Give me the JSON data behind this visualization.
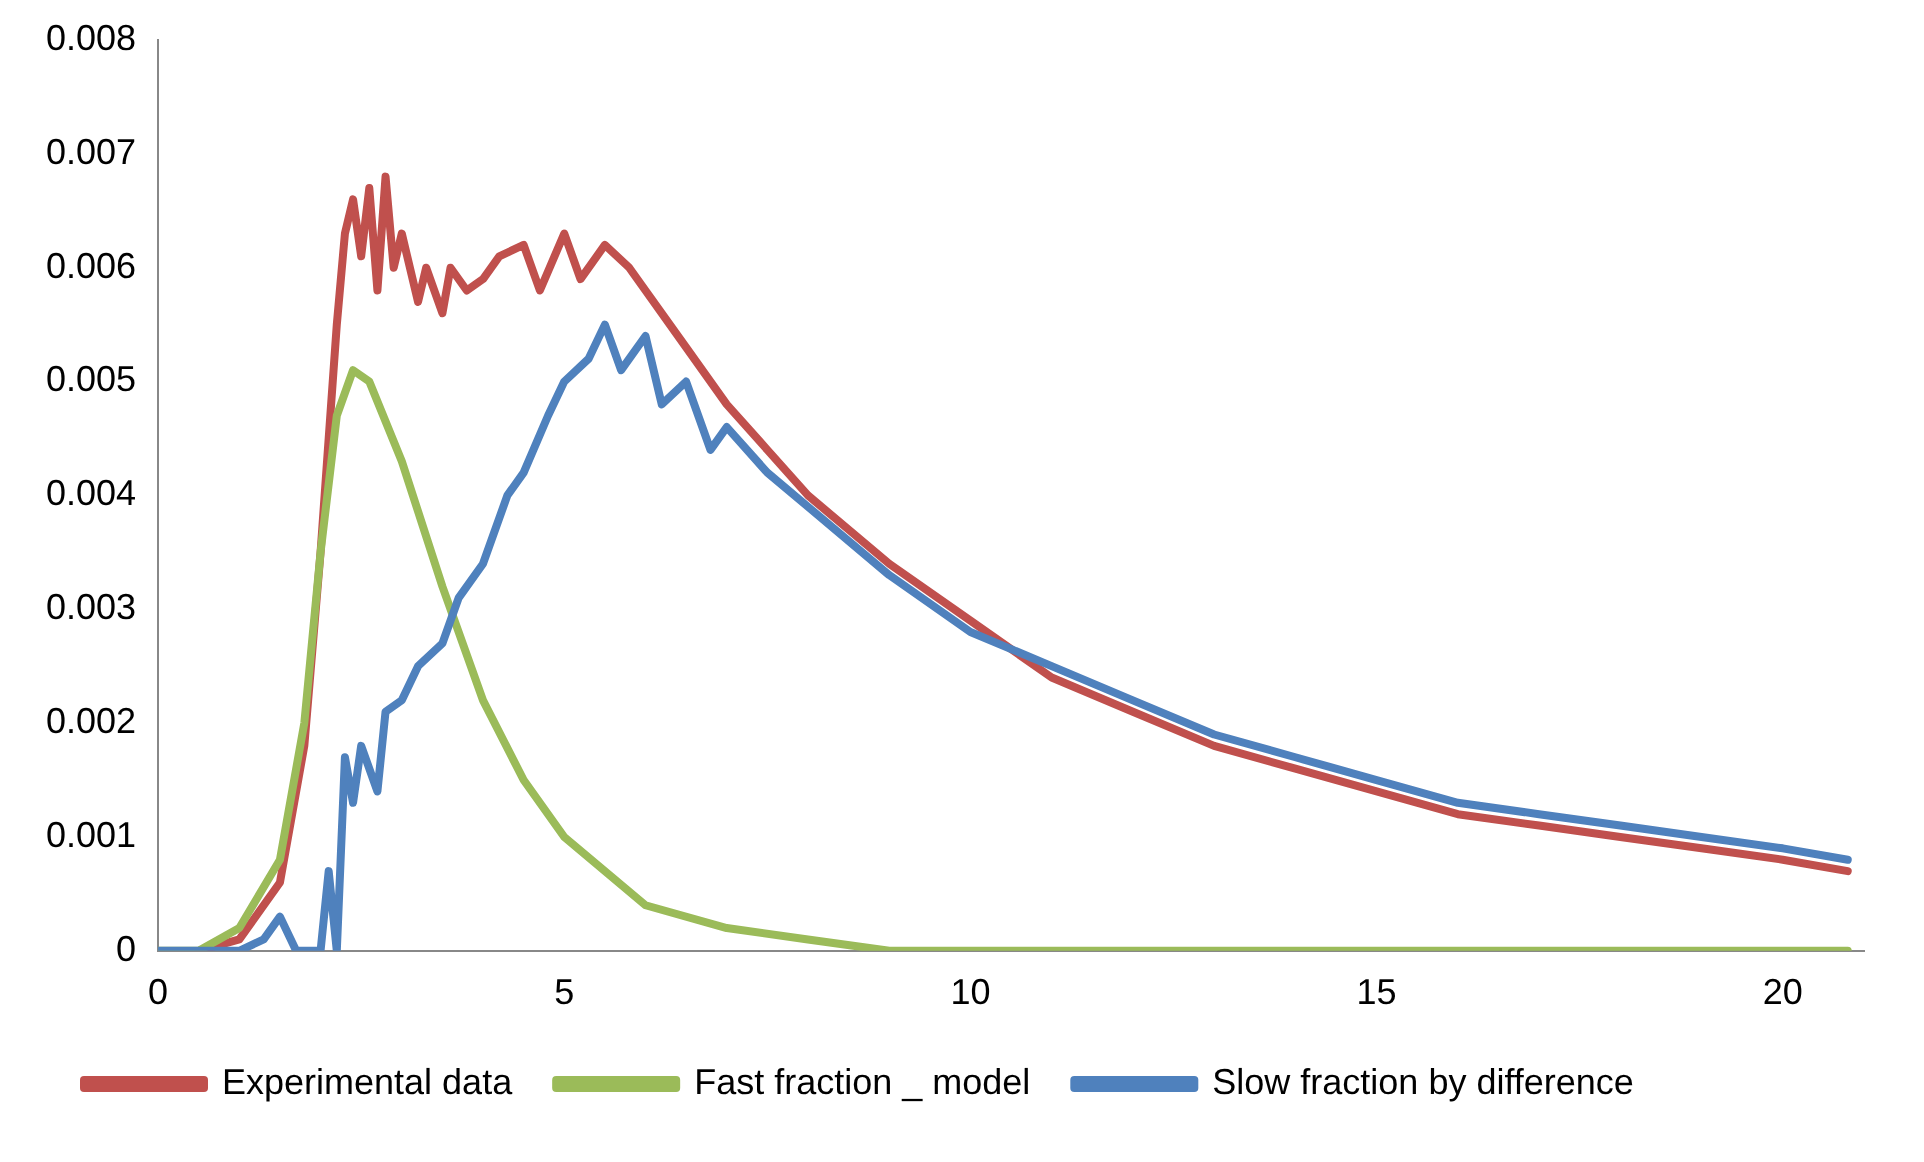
{
  "chart_data": {
    "type": "line",
    "xlim": [
      0,
      21
    ],
    "xticks": [
      0,
      5,
      10,
      15,
      20
    ],
    "ylim": [
      0,
      0.008
    ],
    "yticks": [
      0,
      0.001,
      0.002,
      0.003,
      0.004,
      0.005,
      0.006,
      0.007,
      0.008
    ],
    "grid": false,
    "legend": "bottom",
    "marker": "none",
    "line_style": "solid",
    "series": [
      {
        "name": "Experimental data",
        "color": "#c0504d",
        "x": [
          0.5,
          1,
          1.5,
          1.8,
          2.0,
          2.2,
          2.3,
          2.4,
          2.5,
          2.6,
          2.7,
          2.8,
          2.9,
          3.0,
          3.2,
          3.3,
          3.5,
          3.6,
          3.8,
          4.0,
          4.2,
          4.5,
          4.7,
          5.0,
          5.2,
          5.5,
          5.8,
          6.0,
          6.5,
          7.0,
          7.5,
          8,
          9,
          10,
          11,
          12,
          13,
          14,
          15,
          16,
          17,
          18,
          19,
          20,
          20.8
        ],
        "values": [
          0,
          0.0001,
          0.0006,
          0.0018,
          0.0035,
          0.0055,
          0.0063,
          0.0066,
          0.0061,
          0.0067,
          0.0058,
          0.0068,
          0.006,
          0.0063,
          0.0057,
          0.006,
          0.0056,
          0.006,
          0.0058,
          0.0059,
          0.0061,
          0.0062,
          0.0058,
          0.0063,
          0.0059,
          0.0062,
          0.006,
          0.0058,
          0.0053,
          0.0048,
          0.0044,
          0.004,
          0.0034,
          0.0029,
          0.0024,
          0.0021,
          0.0018,
          0.0016,
          0.0014,
          0.0012,
          0.0011,
          0.001,
          0.0009,
          0.0008,
          0.0007
        ]
      },
      {
        "name": "Fast fraction _ model",
        "color": "#9bbb59",
        "x": [
          0,
          0.5,
          1,
          1.5,
          1.8,
          2.0,
          2.2,
          2.4,
          2.6,
          3.0,
          3.5,
          4,
          4.5,
          5,
          6,
          7,
          8,
          9,
          10,
          20.8
        ],
        "values": [
          0,
          0,
          0.0002,
          0.0008,
          0.002,
          0.0035,
          0.0047,
          0.0051,
          0.005,
          0.0043,
          0.0032,
          0.0022,
          0.0015,
          0.001,
          0.0004,
          0.0002,
          0.0001,
          0,
          0,
          0
        ]
      },
      {
        "name": "Slow fraction by difference",
        "color": "#4f81bd",
        "x": [
          0,
          1,
          1.3,
          1.5,
          1.7,
          2.0,
          2.1,
          2.2,
          2.3,
          2.4,
          2.5,
          2.7,
          2.8,
          3.0,
          3.2,
          3.5,
          3.7,
          4.0,
          4.3,
          4.5,
          4.8,
          5.0,
          5.3,
          5.5,
          5.7,
          6.0,
          6.2,
          6.5,
          6.8,
          7.0,
          7.5,
          8,
          9,
          10,
          11,
          12,
          13,
          14,
          15,
          16,
          17,
          18,
          19,
          20,
          20.8
        ],
        "values": [
          0,
          0,
          0.0001,
          0.0003,
          0,
          0,
          0.0007,
          0,
          0.0017,
          0.0013,
          0.0018,
          0.0014,
          0.0021,
          0.0022,
          0.0025,
          0.0027,
          0.0031,
          0.0034,
          0.004,
          0.0042,
          0.0047,
          0.005,
          0.0052,
          0.0055,
          0.0051,
          0.0054,
          0.0048,
          0.005,
          0.0044,
          0.0046,
          0.0042,
          0.0039,
          0.0033,
          0.0028,
          0.0025,
          0.0022,
          0.0019,
          0.0017,
          0.0015,
          0.0013,
          0.0012,
          0.0011,
          0.001,
          0.0009,
          0.0008
        ]
      }
    ]
  }
}
